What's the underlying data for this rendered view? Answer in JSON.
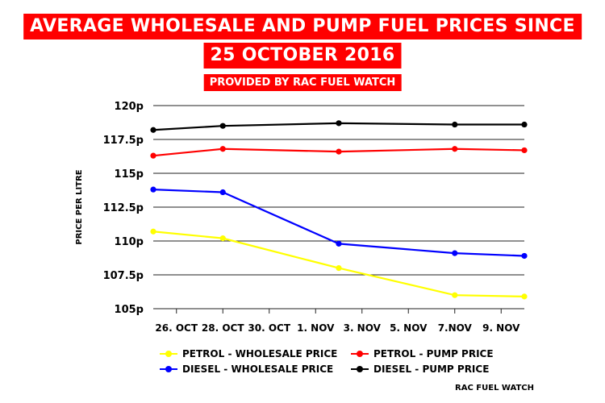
{
  "header": {
    "title_line1": "AVERAGE WHOLESALE AND PUMP FUEL PRICES SINCE",
    "title_line2": "25 OCTOBER 2016",
    "subtitle": "PROVIDED BY RAC FUEL WATCH"
  },
  "source": "RAC FUEL WATCH",
  "chart_data": {
    "type": "line",
    "title": "AVERAGE WHOLESALE AND PUMP FUEL PRICES SINCE 25 OCTOBER 2016",
    "ylabel": "PRICE PER LITRE",
    "xlabel": "",
    "x_ticks": [
      "26. OCT",
      "28. OCT",
      "30. OCT",
      "1. NOV",
      "3. NOV",
      "5. NOV",
      "7.NOV",
      "9. NOV"
    ],
    "x_tick_dates": [
      26,
      28,
      30,
      32,
      34,
      36,
      38,
      40
    ],
    "xlim": [
      25,
      41
    ],
    "y_ticks": [
      "105p",
      "107.5p",
      "110p",
      "112.5p",
      "115p",
      "117.5p",
      "120p"
    ],
    "y_tick_values": [
      105,
      107.5,
      110,
      112.5,
      115,
      117.5,
      120
    ],
    "ylim": [
      105,
      120
    ],
    "grid": "horizontal",
    "legend_position": "bottom",
    "series": [
      {
        "name": "PETROL - WHOLESALE PRICE",
        "color": "#ffff00",
        "x": [
          "25 Oct",
          "28 Oct",
          "2 Nov",
          "7 Nov",
          "10 Nov"
        ],
        "x_date": [
          25,
          28,
          33,
          38,
          41
        ],
        "values": [
          110.7,
          110.2,
          108.0,
          106.0,
          105.9
        ]
      },
      {
        "name": "PETROL - PUMP PRICE",
        "color": "#ff0000",
        "x": [
          "25 Oct",
          "28 Oct",
          "2 Nov",
          "7 Nov",
          "10 Nov"
        ],
        "x_date": [
          25,
          28,
          33,
          38,
          41
        ],
        "values": [
          116.3,
          116.8,
          116.6,
          116.8,
          116.7
        ]
      },
      {
        "name": "DIESEL - WHOLESALE PRICE",
        "color": "#0000ff",
        "x": [
          "25 Oct",
          "28 Oct",
          "2 Nov",
          "7 Nov",
          "10 Nov"
        ],
        "x_date": [
          25,
          28,
          33,
          38,
          41
        ],
        "values": [
          113.8,
          113.6,
          109.8,
          109.1,
          108.9
        ]
      },
      {
        "name": "DIESEL - PUMP PRICE",
        "color": "#000000",
        "x": [
          "25 Oct",
          "28 Oct",
          "2 Nov",
          "7 Nov",
          "10 Nov"
        ],
        "x_date": [
          25,
          28,
          33,
          38,
          41
        ],
        "values": [
          118.2,
          118.5,
          118.7,
          118.6,
          118.6
        ]
      }
    ]
  }
}
